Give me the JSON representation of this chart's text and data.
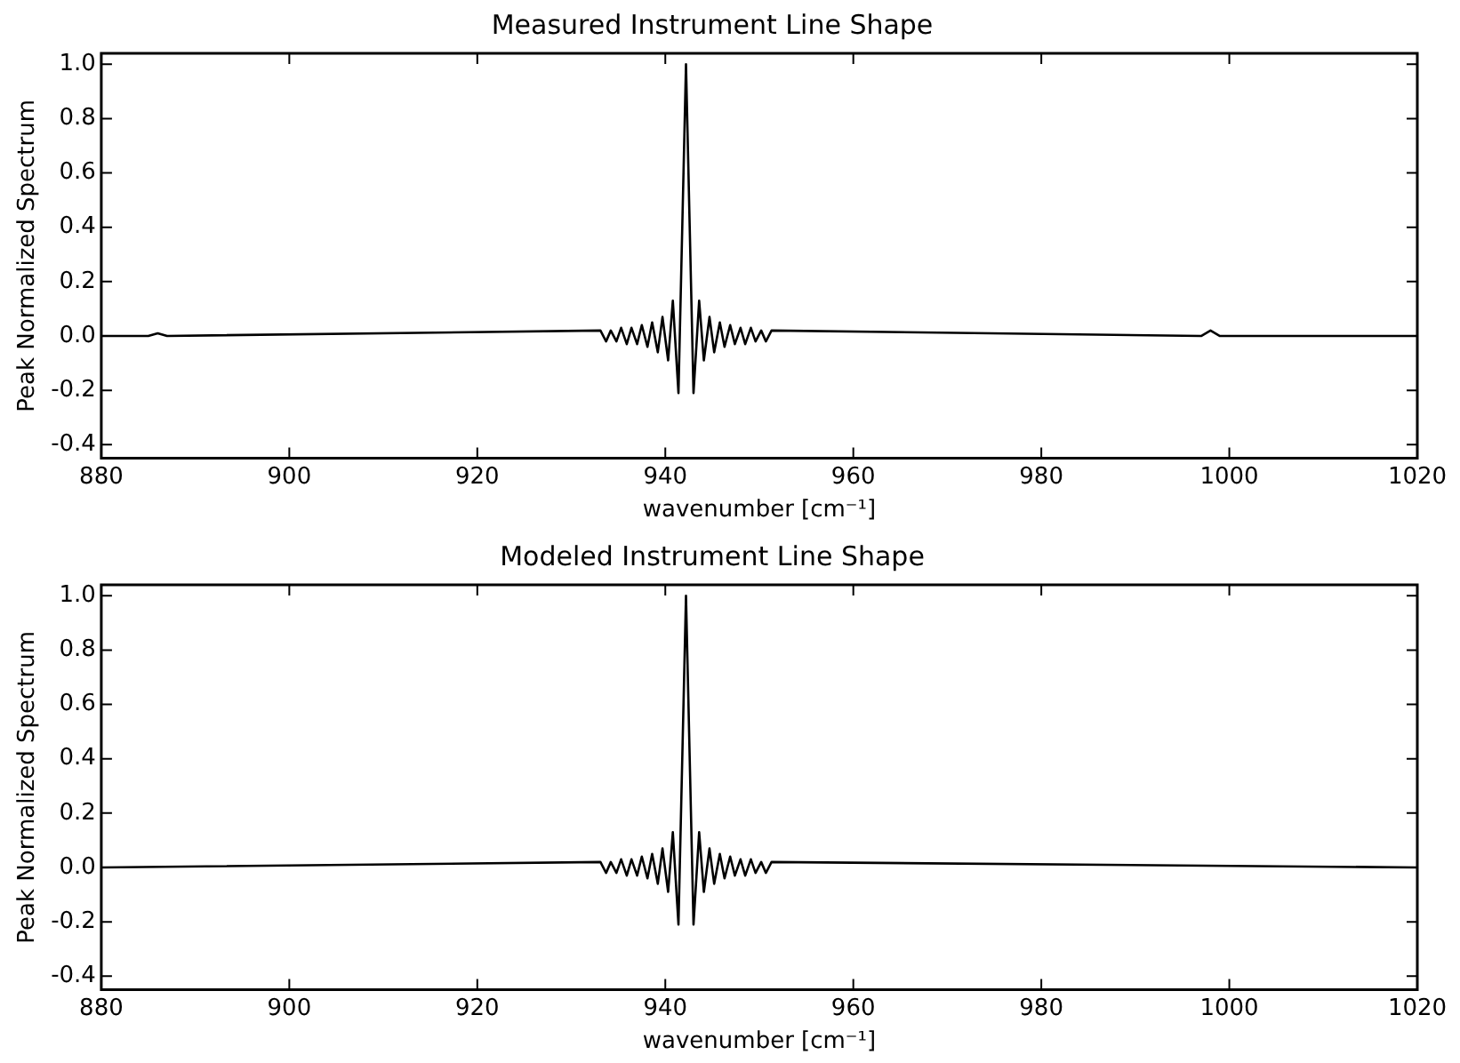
{
  "chart_data": [
    {
      "type": "line",
      "title": "Measured Instrument Line Shape",
      "xlabel": "wavenumber [cm⁻¹]",
      "ylabel": "Peak Normalized Spectrum",
      "xlim": [
        880,
        1020
      ],
      "xticks": [
        880,
        900,
        920,
        940,
        960,
        980,
        1000,
        1020
      ],
      "ylim": [
        -0.45,
        1.04
      ],
      "yticks": [
        {
          "value": -0.4,
          "label": "-0.4"
        },
        {
          "value": -0.2,
          "label": "-0.2"
        },
        {
          "value": 0,
          "label": "0.0"
        },
        {
          "value": 0.2,
          "label": "0.2"
        },
        {
          "value": 0.4,
          "label": "0.4"
        },
        {
          "value": 0.6,
          "label": "0.6"
        },
        {
          "value": 0.8,
          "label": "0.8"
        },
        {
          "value": 1,
          "label": "1.0"
        }
      ],
      "grid": false,
      "legend": false,
      "marker": "none",
      "line_style": "solid",
      "series": [
        {
          "color": "#000000",
          "x": [
            880,
            885,
            886,
            887,
            933.1,
            933.7,
            934.2,
            934.8,
            935.3,
            935.9,
            936.4,
            937.0,
            937.5,
            938.1,
            938.6,
            939.2,
            939.7,
            940.3,
            940.8,
            941.4,
            942.2,
            943.0,
            943.6,
            944.1,
            944.7,
            945.2,
            945.8,
            946.3,
            946.9,
            947.4,
            948.0,
            948.5,
            949.1,
            949.6,
            950.2,
            950.7,
            951.3,
            997,
            998,
            999,
            1020
          ],
          "values": [
            0,
            0,
            0.01,
            0,
            0.02,
            -0.02,
            0.02,
            -0.02,
            0.03,
            -0.03,
            0.03,
            -0.03,
            0.04,
            -0.04,
            0.05,
            -0.06,
            0.07,
            -0.09,
            0.13,
            -0.21,
            1.0,
            -0.21,
            0.13,
            -0.09,
            0.07,
            -0.06,
            0.05,
            -0.04,
            0.04,
            -0.03,
            0.03,
            -0.03,
            0.03,
            -0.02,
            0.02,
            -0.02,
            0.02,
            0,
            0.02,
            0,
            0
          ]
        }
      ]
    },
    {
      "type": "line",
      "title": "Modeled Instrument Line Shape",
      "xlabel": "wavenumber [cm⁻¹]",
      "ylabel": "Peak Normalized Spectrum",
      "xlim": [
        880,
        1020
      ],
      "xticks": [
        880,
        900,
        920,
        940,
        960,
        980,
        1000,
        1020
      ],
      "ylim": [
        -0.45,
        1.04
      ],
      "yticks": [
        {
          "value": -0.4,
          "label": "-0.4"
        },
        {
          "value": -0.2,
          "label": "-0.2"
        },
        {
          "value": 0,
          "label": "0.0"
        },
        {
          "value": 0.2,
          "label": "0.2"
        },
        {
          "value": 0.4,
          "label": "0.4"
        },
        {
          "value": 0.6,
          "label": "0.6"
        },
        {
          "value": 0.8,
          "label": "0.8"
        },
        {
          "value": 1,
          "label": "1.0"
        }
      ],
      "grid": false,
      "legend": false,
      "marker": "none",
      "line_style": "solid",
      "series": [
        {
          "color": "#000000",
          "x": [
            880,
            933.1,
            933.7,
            934.2,
            934.8,
            935.3,
            935.9,
            936.4,
            937.0,
            937.5,
            938.1,
            938.6,
            939.2,
            939.7,
            940.3,
            940.8,
            941.4,
            942.2,
            943.0,
            943.6,
            944.1,
            944.7,
            945.2,
            945.8,
            946.3,
            946.9,
            947.4,
            948.0,
            948.5,
            949.1,
            949.6,
            950.2,
            950.7,
            951.3,
            1020
          ],
          "values": [
            0,
            0.02,
            -0.02,
            0.02,
            -0.02,
            0.03,
            -0.03,
            0.03,
            -0.03,
            0.04,
            -0.04,
            0.05,
            -0.06,
            0.07,
            -0.09,
            0.13,
            -0.21,
            1.0,
            -0.21,
            0.13,
            -0.09,
            0.07,
            -0.06,
            0.05,
            -0.04,
            0.04,
            -0.03,
            0.03,
            -0.03,
            0.03,
            -0.02,
            0.02,
            -0.02,
            0.02,
            0
          ]
        }
      ]
    }
  ]
}
